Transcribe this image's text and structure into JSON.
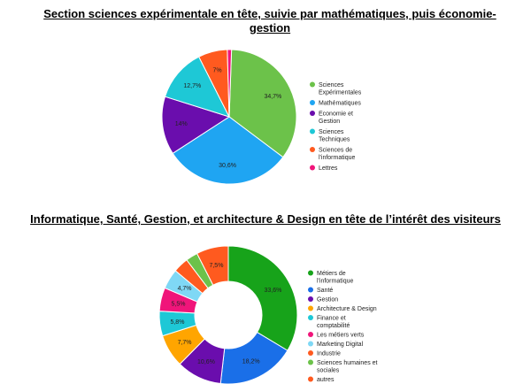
{
  "chart_data": [
    {
      "type": "pie",
      "title": "Section sciences expérimentale  en tête, suivie par mathématiques, puis économie-gestion",
      "categories": [
        "Sciences Expérimentales",
        "Mathématiques",
        "Economie et Gestion",
        "Sciences Techniques",
        "Sciences de l'informatique",
        "Lettres"
      ],
      "values": [
        34.7,
        30.6,
        14,
        12.7,
        7,
        1
      ],
      "labels": [
        "34,7%",
        "30,6%",
        "14%",
        "12,7%",
        "7%",
        ""
      ],
      "colors": [
        "#6cc24a",
        "#1fa5f2",
        "#6a0dad",
        "#1ec8d6",
        "#ff5a1f",
        "#f0157a"
      ],
      "legend_position": "right"
    },
    {
      "type": "pie",
      "subtype": "donut",
      "title": "Informatique, Santé, Gestion, et architecture & Design en tête de l’intérêt des visiteurs",
      "categories": [
        "Métiers de l'informatique",
        "Santé",
        "Gestion",
        "Architecture & Design",
        "Finance et comptabilité",
        "Les métiers verts",
        "Marketing Digital",
        "Industrie",
        "Sciences humaines et sociales",
        "autres"
      ],
      "values": [
        33.6,
        18.2,
        10.6,
        7.7,
        5.8,
        5.5,
        4.7,
        3.6,
        2.8,
        7.5
      ],
      "labels": [
        "33,6%",
        "18,2%",
        "10,6%",
        "7,7%",
        "5,8%",
        "5,5%",
        "4,7%",
        "",
        "",
        "7,5%"
      ],
      "colors": [
        "#17a31a",
        "#1a6fe8",
        "#6a0dad",
        "#ffa500",
        "#1ec8d6",
        "#f0157a",
        "#7fd8f5",
        "#ff5a1f",
        "#6cc24a",
        "#ff5a1f"
      ],
      "legend_position": "right"
    }
  ]
}
